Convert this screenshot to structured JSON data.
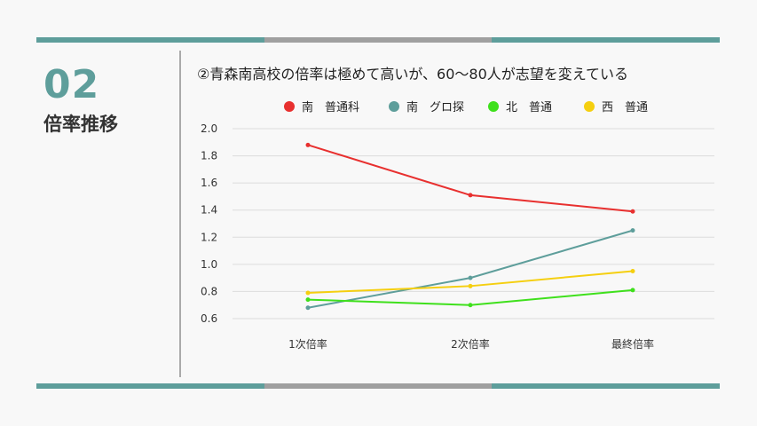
{
  "section": {
    "number": "02",
    "title": "倍率推移"
  },
  "headline": "②青森南高校の倍率は極めて高いが、60〜80人が志望を変えている",
  "colors": {
    "accent": "#5e9e9b",
    "gray": "#a0a0a0"
  },
  "chart_data": {
    "type": "line",
    "title": "",
    "xlabel": "",
    "ylabel": "",
    "categories": [
      "1次倍率",
      "2次倍率",
      "最終倍率"
    ],
    "ylim": [
      0.6,
      2.0
    ],
    "yticks": [
      "2.0",
      "1.8",
      "1.6",
      "1.4",
      "1.2",
      "1.0",
      "0.8",
      "0.6"
    ],
    "grid": true,
    "legend_position": "top",
    "series": [
      {
        "name": "南　普通科",
        "color": "#e8302f",
        "values": [
          1.88,
          1.51,
          1.39
        ]
      },
      {
        "name": "南　グロ探",
        "color": "#5e9e9b",
        "values": [
          0.68,
          0.9,
          1.25
        ]
      },
      {
        "name": "北　普通",
        "color": "#3fe01c",
        "values": [
          0.74,
          0.7,
          0.81
        ]
      },
      {
        "name": "西　普通",
        "color": "#f5cf10",
        "values": [
          0.79,
          0.84,
          0.95
        ]
      }
    ]
  }
}
